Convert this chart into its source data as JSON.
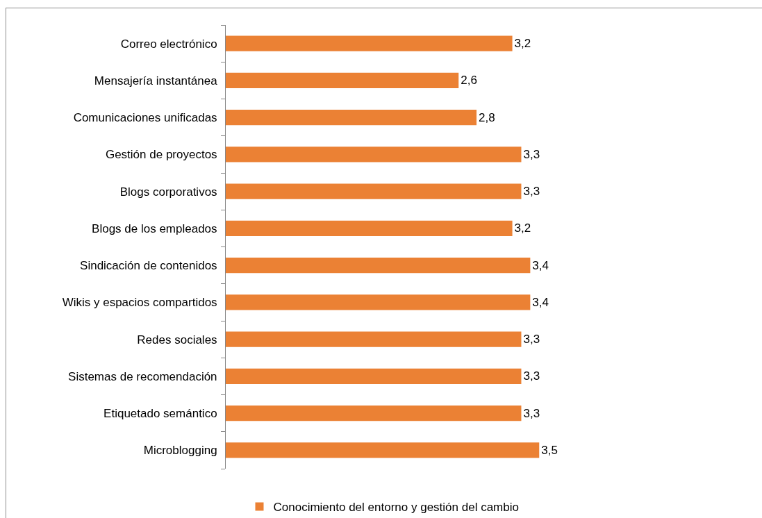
{
  "chart_data": {
    "type": "bar",
    "orientation": "horizontal",
    "categories": [
      "Correo electrónico",
      "Mensajería instantánea",
      "Comunicaciones unificadas",
      "Gestión de proyectos",
      "Blogs corporativos",
      "Blogs de los empleados",
      "Sindicación de contenidos",
      "Wikis y espacios compartidos",
      "Redes sociales",
      "Sistemas de recomendación",
      "Etiquetado semántico",
      "Microblogging"
    ],
    "series": [
      {
        "name": "Conocimiento del entorno y gestión del cambio",
        "color": "#eb8134",
        "values": [
          3.2,
          2.6,
          2.8,
          3.3,
          3.3,
          3.2,
          3.4,
          3.4,
          3.3,
          3.3,
          3.3,
          3.5
        ],
        "value_labels": [
          "3,2",
          "2,6",
          "2,8",
          "3,3",
          "3,3",
          "3,2",
          "3,4",
          "3,4",
          "3,3",
          "3,3",
          "3,3",
          "3,5"
        ]
      }
    ],
    "tick_labels": "y",
    "legend": "bottom"
  }
}
